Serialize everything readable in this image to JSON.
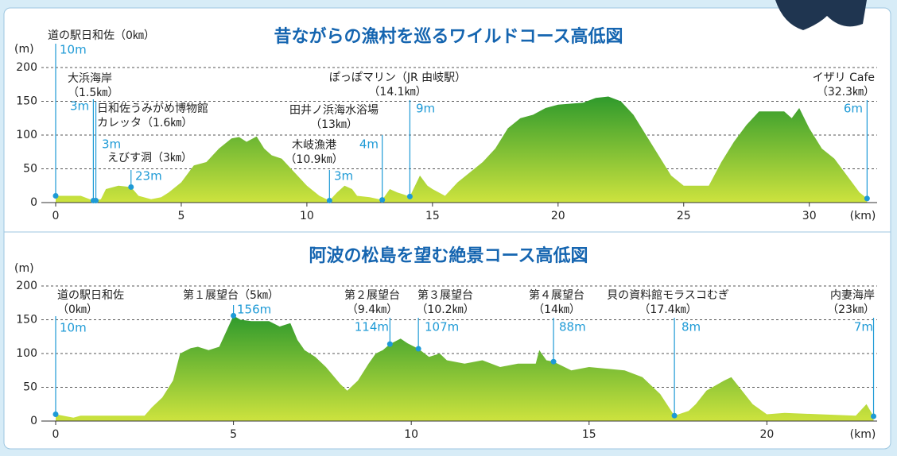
{
  "chart_data": [
    {
      "type": "area",
      "title": "昔ながらの漁村を巡るワイルドコース高低図",
      "y_label": "(m)",
      "x_label": "(km)",
      "colors": [
        "#2f9a2c",
        "#cde33e"
      ],
      "marker_color": "#1e9ad6",
      "x": [
        0,
        1,
        1.5,
        1.8,
        2,
        2.5,
        3,
        3.3,
        3.8,
        4.2,
        4.5,
        5,
        5.5,
        6,
        6.5,
        7,
        7.3,
        7.6,
        8,
        8.3,
        8.6,
        9,
        9.5,
        10,
        10.5,
        10.9,
        11.2,
        11.5,
        11.8,
        12,
        12.5,
        13,
        13.3,
        13.6,
        14.1,
        14.5,
        14.8,
        15,
        15.5,
        16,
        16.5,
        17,
        17.5,
        18,
        18.5,
        19,
        19.5,
        20,
        21,
        21.5,
        22,
        22.5,
        23,
        23.5,
        24,
        24.5,
        25,
        26,
        26.5,
        27,
        27.5,
        28,
        29,
        29.3,
        29.6,
        30,
        30.5,
        31,
        31.5,
        32,
        32.3
      ],
      "values": [
        10,
        10,
        3,
        5,
        20,
        25,
        23,
        10,
        5,
        8,
        15,
        30,
        55,
        60,
        80,
        95,
        97,
        90,
        98,
        80,
        70,
        65,
        45,
        25,
        10,
        3,
        15,
        25,
        20,
        10,
        8,
        4,
        20,
        15,
        9,
        40,
        25,
        20,
        10,
        30,
        45,
        60,
        80,
        110,
        125,
        130,
        140,
        145,
        148,
        155,
        157,
        150,
        130,
        100,
        70,
        40,
        25,
        25,
        60,
        90,
        115,
        135,
        135,
        125,
        140,
        110,
        80,
        65,
        40,
        15,
        6
      ],
      "xlim": [
        0,
        32.7
      ],
      "xticks": [
        0,
        5,
        10,
        15,
        20,
        25,
        30
      ],
      "ylim": [
        0,
        200
      ],
      "yticks": [
        0,
        50,
        100,
        150,
        200
      ],
      "grid": true,
      "landmarks": [
        {
          "label_lines": [
            "道の駅日和佐（0㎞）"
          ],
          "km": 0,
          "elevation": 10,
          "elevation_label": "10m"
        },
        {
          "label_lines": [
            "大浜海岸",
            "（1.5㎞）"
          ],
          "km": 1.5,
          "elevation": 3,
          "elevation_label": "3m"
        },
        {
          "label_lines": [
            "日和佐うみがめ博物館",
            "カレッタ（1.6㎞）"
          ],
          "km": 1.6,
          "elevation": 3,
          "elevation_label": "3m"
        },
        {
          "label_lines": [
            "えびす洞（3㎞）"
          ],
          "km": 3,
          "elevation": 23,
          "elevation_label": "23m"
        },
        {
          "label_lines": [
            "木岐漁港",
            "（10.9㎞）"
          ],
          "km": 10.9,
          "elevation": 3,
          "elevation_label": "3m"
        },
        {
          "label_lines": [
            "田井ノ浜海水浴場",
            "（13㎞）"
          ],
          "km": 13,
          "elevation": 4,
          "elevation_label": "4m"
        },
        {
          "label_lines": [
            "ぽっぽマリン（JR 由岐駅）",
            "（14.1㎞）"
          ],
          "km": 14.1,
          "elevation": 9,
          "elevation_label": "9m"
        },
        {
          "label_lines": [
            "イザリ Cafe",
            "（32.3㎞）"
          ],
          "km": 32.3,
          "elevation": 6,
          "elevation_label": "6m"
        }
      ]
    },
    {
      "type": "area",
      "title": "阿波の松島を望む絶景コース高低図",
      "y_label": "(m)",
      "x_label": "(km)",
      "colors": [
        "#2f9a2c",
        "#cde33e"
      ],
      "marker_color": "#1e9ad6",
      "x": [
        0,
        0.5,
        0.7,
        2.5,
        2.7,
        3,
        3.3,
        3.5,
        3.8,
        4,
        4.3,
        4.6,
        5,
        5.2,
        5.5,
        6,
        6.3,
        6.6,
        6.8,
        7,
        7.3,
        7.6,
        8,
        8.2,
        8.5,
        8.8,
        9,
        9.2,
        9.4,
        9.7,
        9.9,
        10.2,
        10.5,
        10.8,
        11,
        11.5,
        12,
        12.5,
        13,
        13.5,
        13.6,
        13.8,
        14,
        14.5,
        15,
        16,
        16.5,
        17,
        17.4,
        17.8,
        18,
        18.3,
        18.8,
        19,
        19.3,
        19.6,
        20,
        20.5,
        21.5,
        22.5,
        22.8,
        23
      ],
      "values": [
        10,
        5,
        8,
        8,
        20,
        35,
        60,
        100,
        108,
        110,
        105,
        110,
        156,
        150,
        148,
        148,
        140,
        145,
        120,
        105,
        95,
        80,
        55,
        45,
        60,
        85,
        100,
        105,
        114,
        122,
        115,
        107,
        95,
        100,
        90,
        85,
        90,
        80,
        85,
        85,
        105,
        90,
        88,
        75,
        80,
        75,
        65,
        40,
        8,
        15,
        25,
        45,
        60,
        65,
        45,
        25,
        10,
        12,
        10,
        8,
        25,
        7
      ],
      "xlim": [
        0,
        23.1
      ],
      "xticks": [
        0,
        5,
        10,
        15,
        20
      ],
      "ylim": [
        0,
        200
      ],
      "yticks": [
        0,
        50,
        100,
        150,
        200
      ],
      "grid": true,
      "landmarks": [
        {
          "label_lines": [
            "道の駅日和佐",
            "（0㎞）"
          ],
          "km": 0,
          "elevation": 10,
          "elevation_label": "10m"
        },
        {
          "label_lines": [
            "第１展望台（5㎞）"
          ],
          "km": 5,
          "elevation": 156,
          "elevation_label": "156m"
        },
        {
          "label_lines": [
            "第２展望台",
            "（9.4㎞）"
          ],
          "km": 9.4,
          "elevation": 114,
          "elevation_label": "114m"
        },
        {
          "label_lines": [
            "第３展望台",
            "（10.2㎞）"
          ],
          "km": 10.2,
          "elevation": 107,
          "elevation_label": "107m"
        },
        {
          "label_lines": [
            "第４展望台",
            "（14㎞）"
          ],
          "km": 14,
          "elevation": 88,
          "elevation_label": "88m"
        },
        {
          "label_lines": [
            "貝の資料館モラスコむぎ",
            "（17.4㎞）"
          ],
          "km": 17.4,
          "elevation": 8,
          "elevation_label": "8m"
        },
        {
          "label_lines": [
            "内妻海岸",
            "（23㎞）"
          ],
          "km": 23,
          "elevation": 7,
          "elevation_label": "7m"
        }
      ]
    }
  ]
}
